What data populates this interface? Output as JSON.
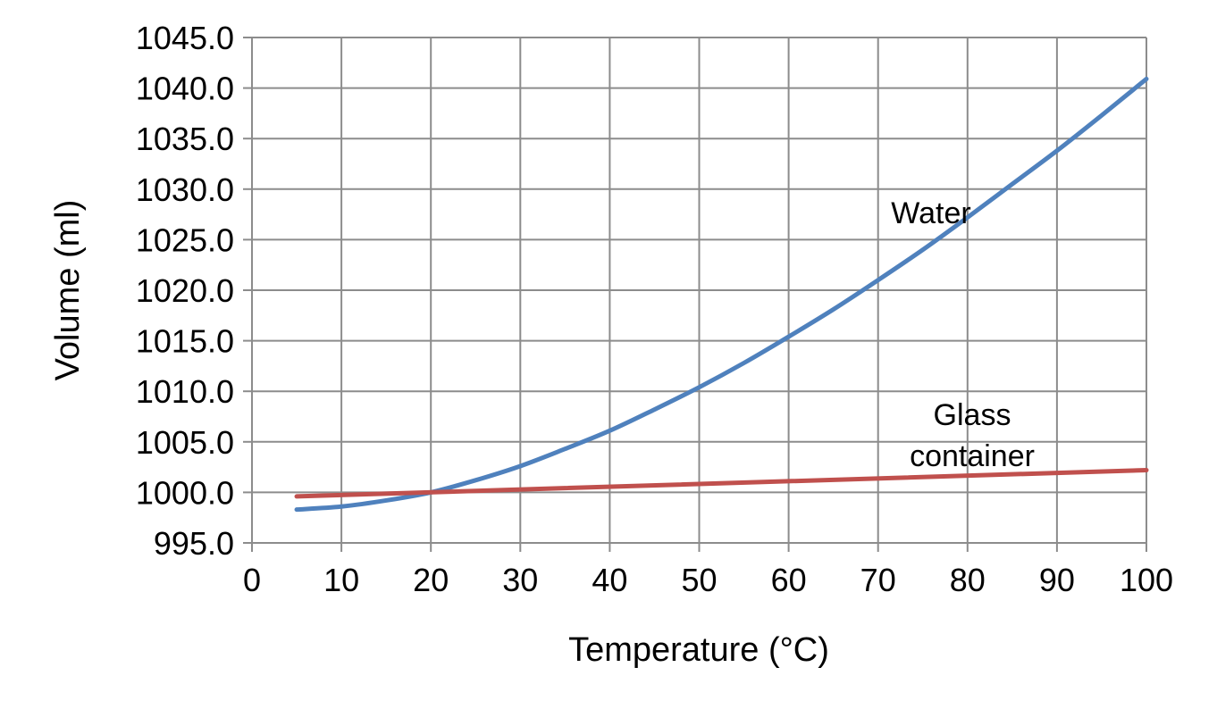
{
  "chart_data": {
    "type": "line",
    "title": "",
    "xlabel": "Temperature (°C)",
    "ylabel": "Volume (ml)",
    "xlim": [
      0,
      100
    ],
    "ylim": [
      995,
      1045
    ],
    "x_ticks": [
      "0",
      "10",
      "20",
      "30",
      "40",
      "50",
      "60",
      "70",
      "80",
      "90",
      "100"
    ],
    "y_ticks": [
      "995.0",
      "1000.0",
      "1005.0",
      "1010.0",
      "1015.0",
      "1020.0",
      "1025.0",
      "1030.0",
      "1035.0",
      "1040.0",
      "1045.0"
    ],
    "grid": true,
    "legend": "none",
    "series": [
      {
        "name": "Water",
        "label_lines": [
          "Water"
        ],
        "color": "#4f81bd",
        "x": [
          5,
          10,
          15,
          20,
          25,
          30,
          35,
          40,
          45,
          50,
          55,
          60,
          65,
          70,
          75,
          80,
          85,
          90,
          95,
          100
        ],
        "y": [
          998.3,
          998.6,
          999.2,
          1000.0,
          1001.2,
          1002.6,
          1004.3,
          1006.1,
          1008.2,
          1010.4,
          1012.8,
          1015.4,
          1018.1,
          1021.0,
          1024.0,
          1027.2,
          1030.5,
          1033.8,
          1037.3,
          1040.9
        ]
      },
      {
        "name": "Glass container",
        "label_lines": [
          "Glass",
          "container"
        ],
        "color": "#c0504d",
        "x": [
          5,
          100
        ],
        "y": [
          999.6,
          1002.2
        ]
      }
    ]
  }
}
